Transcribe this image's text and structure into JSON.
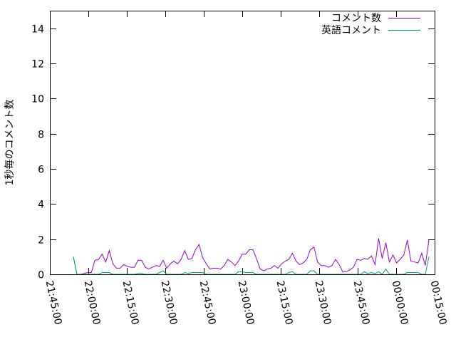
{
  "chart_data": {
    "type": "line",
    "title": "",
    "xlabel": "",
    "ylabel": "1秒毎のコメント数",
    "xlim": [
      "21:45:00",
      "00:15:00"
    ],
    "ylim": [
      0,
      15
    ],
    "x_ticks": [
      "21:45:00",
      "22:00:00",
      "22:15:00",
      "22:30:00",
      "22:45:00",
      "23:00:00",
      "23:15:00",
      "23:30:00",
      "23:45:00",
      "00:00:00",
      "00:15:00"
    ],
    "y_ticks": [
      "0",
      "2",
      "4",
      "6",
      "8",
      "10",
      "12",
      "14"
    ],
    "grid": false,
    "legend_position": "top-right",
    "x": [
      "21:54:10",
      "21:55:34",
      "21:56:58",
      "21:58:22",
      "21:59:46",
      "22:01:10",
      "22:02:34",
      "22:03:58",
      "22:05:22",
      "22:06:46",
      "22:08:10",
      "22:09:34",
      "22:10:58",
      "22:12:22",
      "22:13:46",
      "22:15:10",
      "22:16:34",
      "22:17:58",
      "22:19:22",
      "22:20:46",
      "22:22:10",
      "22:23:34",
      "22:24:58",
      "22:26:22",
      "22:27:46",
      "22:29:10",
      "22:30:34",
      "22:31:58",
      "22:33:22",
      "22:34:46",
      "22:36:10",
      "22:37:34",
      "22:38:58",
      "22:40:22",
      "22:41:46",
      "22:43:10",
      "22:44:34",
      "22:45:58",
      "22:47:22",
      "22:48:46",
      "22:50:10",
      "22:51:34",
      "22:52:58",
      "22:54:22",
      "22:55:46",
      "22:57:10",
      "22:58:34",
      "22:59:58",
      "23:01:22",
      "23:02:46",
      "23:04:10",
      "23:05:34",
      "23:06:58",
      "23:08:22",
      "23:09:46",
      "23:11:10",
      "23:12:34",
      "23:13:58",
      "23:15:22",
      "23:16:46",
      "23:18:10",
      "23:19:34",
      "23:20:58",
      "23:22:22",
      "23:23:46",
      "23:25:10",
      "23:26:34",
      "23:27:58",
      "23:29:22",
      "23:30:46",
      "23:32:10",
      "23:33:34",
      "23:34:58",
      "23:36:22",
      "23:37:46",
      "23:39:10",
      "23:40:34",
      "23:41:58",
      "23:43:22",
      "23:44:46",
      "23:46:10",
      "23:47:34",
      "23:48:58",
      "23:50:22",
      "23:51:46",
      "23:53:10",
      "23:54:34",
      "23:55:58",
      "23:57:22",
      "23:58:46",
      "00:00:10",
      "00:01:34",
      "00:02:58",
      "00:04:22",
      "00:05:46",
      "00:07:10",
      "00:08:34",
      "00:09:58",
      "00:11:22",
      "00:12:46"
    ],
    "series": [
      {
        "name": "コメント数",
        "color": "#9400d3",
        "values": [
          1.0,
          0,
          0,
          0.05,
          0.1,
          0.1,
          0.8,
          0.85,
          1.15,
          0.7,
          1.35,
          0.6,
          0.35,
          0.35,
          0.55,
          0.45,
          0.4,
          0.4,
          0.8,
          0.8,
          0.4,
          0.3,
          0.4,
          0.5,
          0.45,
          0.8,
          0.35,
          0.6,
          0.75,
          0.6,
          0.85,
          1.35,
          0.85,
          0.9,
          1.4,
          1.7,
          0.95,
          0.6,
          0.3,
          0.35,
          0.35,
          0.3,
          0.5,
          0.85,
          0.7,
          0.5,
          0.75,
          1.15,
          1.15,
          1.4,
          1.4,
          0.9,
          0.3,
          0.2,
          0.3,
          0.35,
          0.5,
          0.35,
          0.6,
          0.75,
          0.85,
          1.2,
          0.75,
          0.55,
          0.65,
          0.85,
          1.4,
          1.55,
          0.7,
          0.5,
          0.5,
          0.4,
          0.5,
          0.85,
          0.55,
          0.15,
          0.15,
          0.25,
          0.4,
          0.85,
          0.8,
          0.9,
          0.85,
          1.05,
          0.55,
          2.05,
          0.9,
          1.8,
          0.7,
          1.1,
          0.65,
          0.85,
          1.1,
          1.95,
          0.75,
          0.7,
          0.65,
          1.2,
          0.5,
          1.95
        ]
      },
      {
        "name": "英語コメント",
        "color": "#009e73",
        "values": [
          1.0,
          0,
          0,
          0,
          0,
          0,
          0,
          0,
          0.1,
          0.1,
          0.1,
          0,
          0,
          0,
          0,
          0,
          0,
          0,
          0.05,
          0.05,
          0,
          0,
          0,
          0,
          0.1,
          0.2,
          0,
          0,
          0,
          0,
          0,
          0.1,
          0.05,
          0.1,
          0.1,
          0.1,
          0.1,
          0,
          0,
          0,
          0,
          0,
          0,
          0,
          0,
          0,
          0.15,
          0.15,
          0.1,
          0.1,
          0.1,
          0,
          0,
          0,
          0,
          0,
          0,
          0,
          0,
          0,
          0.1,
          0.15,
          0,
          0,
          0,
          0,
          0.2,
          0.2,
          0,
          0,
          0,
          0,
          0,
          0,
          0,
          0,
          0,
          0,
          0,
          0,
          0,
          0.15,
          0.05,
          0.1,
          0.05,
          0.15,
          0,
          0.3,
          0,
          0,
          0,
          0,
          0,
          0.1,
          0.1,
          0.1,
          0.1,
          0,
          0,
          1.0
        ]
      }
    ]
  }
}
